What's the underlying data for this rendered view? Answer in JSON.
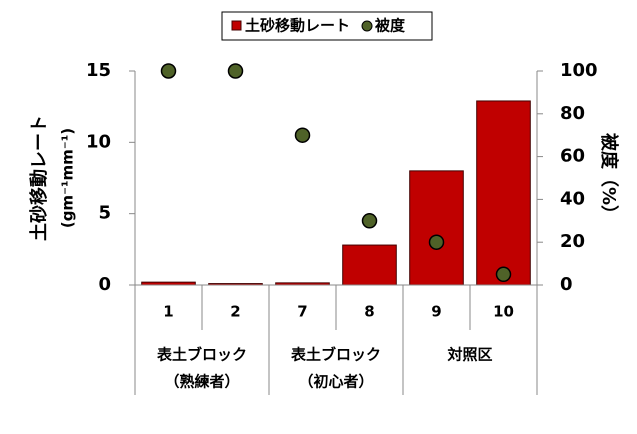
{
  "chart_data": {
    "type": "bar",
    "categories": [
      "1",
      "2",
      "7",
      "8",
      "9",
      "10"
    ],
    "groups": [
      [
        "表土ブロック",
        "（熟練者）"
      ],
      [
        "表土ブロック",
        "（初心者）"
      ],
      [
        "対照区"
      ]
    ],
    "y_label": "土砂移動レート",
    "y_label_unit": "(gm⁻¹mm⁻¹)",
    "y2_label": "被度（%）",
    "series": [
      {
        "name": "土砂移動レート",
        "type": "bar",
        "color": "#c00000",
        "values": [
          0.2,
          0.1,
          0.15,
          2.8,
          8.0,
          12.9
        ]
      },
      {
        "name": "被度",
        "type": "scatter",
        "axis": "y2",
        "color": "#4f6228",
        "values": [
          100,
          100,
          70,
          30,
          20,
          5
        ]
      }
    ],
    "ylim": [
      0,
      15
    ],
    "yticks": [
      0,
      5,
      10,
      15
    ],
    "y2lim": [
      0,
      100
    ],
    "y2ticks": [
      0,
      20,
      40,
      60,
      80,
      100
    ],
    "legend": "top"
  }
}
